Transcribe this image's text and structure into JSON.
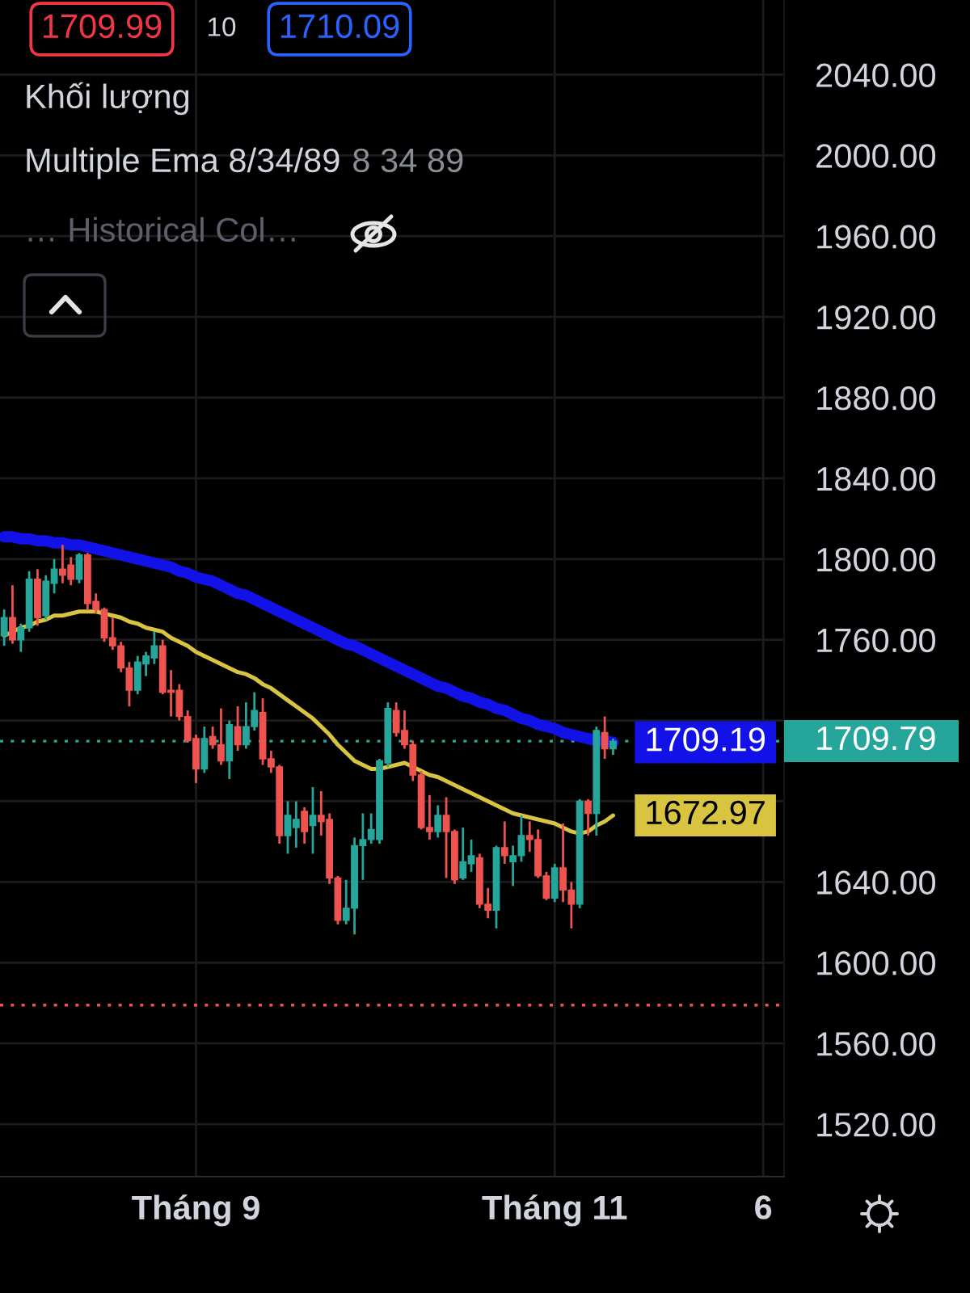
{
  "chart_data": {
    "type": "candlestick",
    "categories": [
      null,
      null,
      null,
      null,
      null,
      null,
      null,
      null,
      null,
      null,
      null,
      null,
      null,
      null,
      null,
      null,
      null,
      null,
      null,
      null,
      null,
      null,
      null,
      "Tháng 9",
      null,
      null,
      null,
      null,
      null,
      null,
      null,
      null,
      null,
      null,
      null,
      null,
      null,
      null,
      null,
      null,
      null,
      null,
      null,
      null,
      null,
      null,
      null,
      null,
      null,
      null,
      null,
      null,
      null,
      null,
      null,
      null,
      null,
      null,
      null,
      null,
      null,
      null,
      null,
      null,
      null,
      null,
      "Tháng 11",
      null,
      null,
      null,
      null,
      null,
      null,
      null,
      null,
      null,
      null,
      null,
      null,
      null,
      null,
      null,
      null,
      null,
      null,
      null,
      null,
      null,
      null,
      null,
      null,
      "6",
      null,
      null
    ],
    "ohlc": [
      [
        1762,
        1775,
        1757,
        1771
      ],
      [
        1771,
        1787,
        1758,
        1760
      ],
      [
        1760,
        1768,
        1754,
        1766
      ],
      [
        1766,
        1794,
        1764,
        1790
      ],
      [
        1790,
        1795,
        1767,
        1771
      ],
      [
        1772,
        1792,
        1770,
        1789
      ],
      [
        1788,
        1800,
        1783,
        1795
      ],
      [
        1795,
        1807,
        1788,
        1792
      ],
      [
        1797,
        1801,
        1787,
        1790
      ],
      [
        1790,
        1803,
        1788,
        1802
      ],
      [
        1802,
        1803,
        1775,
        1778
      ],
      [
        1779,
        1783,
        1773,
        1775
      ],
      [
        1775,
        1776,
        1759,
        1761
      ],
      [
        1761,
        1771,
        1755,
        1757
      ],
      [
        1757,
        1759,
        1744,
        1746
      ],
      [
        1746,
        1749,
        1727,
        1735
      ],
      [
        1735,
        1752,
        1733,
        1749
      ],
      [
        1748,
        1754,
        1742,
        1752
      ],
      [
        1751,
        1764,
        1748,
        1757
      ],
      [
        1757,
        1760,
        1733,
        1734
      ],
      [
        1735,
        1745,
        1722,
        1734
      ],
      [
        1735,
        1738,
        1720,
        1722
      ],
      [
        1722,
        1725,
        1709,
        1710
      ],
      [
        1711,
        1713,
        1689,
        1696
      ],
      [
        1696,
        1717,
        1694,
        1711
      ],
      [
        1712,
        1717,
        1706,
        1708
      ],
      [
        1708,
        1726,
        1698,
        1700
      ],
      [
        1700,
        1720,
        1691,
        1718
      ],
      [
        1717,
        1727,
        1705,
        1708
      ],
      [
        1708,
        1729,
        1706,
        1717
      ],
      [
        1717,
        1734,
        1715,
        1725
      ],
      [
        1724,
        1731,
        1698,
        1701
      ],
      [
        1701,
        1705,
        1694,
        1697
      ],
      [
        1697,
        1698,
        1659,
        1663
      ],
      [
        1663,
        1680,
        1654,
        1673
      ],
      [
        1667,
        1680,
        1657,
        1671
      ],
      [
        1675,
        1677,
        1659,
        1665
      ],
      [
        1668,
        1687,
        1654,
        1673
      ],
      [
        1673,
        1685,
        1663,
        1670
      ],
      [
        1671,
        1674,
        1639,
        1642
      ],
      [
        1642,
        1643,
        1619,
        1621
      ],
      [
        1621,
        1641,
        1619,
        1627
      ],
      [
        1627,
        1662,
        1614,
        1658
      ],
      [
        1658,
        1674,
        1641,
        1661
      ],
      [
        1661,
        1674,
        1659,
        1666
      ],
      [
        1661,
        1701,
        1659,
        1700
      ],
      [
        1699,
        1729,
        1697,
        1726
      ],
      [
        1725,
        1729,
        1712,
        1714
      ],
      [
        1715,
        1725,
        1706,
        1708
      ],
      [
        1708,
        1710,
        1690,
        1693
      ],
      [
        1693,
        1695,
        1666,
        1667
      ],
      [
        1667,
        1683,
        1661,
        1665
      ],
      [
        1665,
        1678,
        1662,
        1673
      ],
      [
        1673,
        1682,
        1642,
        1665
      ],
      [
        1665,
        1666,
        1639,
        1641
      ],
      [
        1642,
        1667,
        1641,
        1650
      ],
      [
        1649,
        1661,
        1645,
        1653
      ],
      [
        1652,
        1654,
        1627,
        1629
      ],
      [
        1629,
        1637,
        1622,
        1626
      ],
      [
        1626,
        1658,
        1617,
        1657
      ],
      [
        1657,
        1670,
        1649,
        1653
      ],
      [
        1650,
        1658,
        1638,
        1653
      ],
      [
        1653,
        1673,
        1650,
        1663
      ],
      [
        1663,
        1670,
        1655,
        1661
      ],
      [
        1661,
        1666,
        1642,
        1643
      ],
      [
        1643,
        1645,
        1631,
        1632
      ],
      [
        1632,
        1649,
        1630,
        1647
      ],
      [
        1647,
        1669,
        1630,
        1636
      ],
      [
        1636,
        1640,
        1617,
        1629
      ],
      [
        1629,
        1681,
        1627,
        1680
      ],
      [
        1680,
        1681,
        1663,
        1674
      ],
      [
        1674,
        1717,
        1663,
        1715
      ],
      [
        1714,
        1722,
        1701,
        1706
      ],
      [
        1706,
        1711,
        1703,
        1709.79
      ],
      null,
      null,
      null,
      null,
      null,
      null,
      null,
      null,
      null,
      null,
      null,
      null,
      null,
      null,
      null,
      null,
      null,
      null,
      null,
      null
    ],
    "colors": [
      "#26a69a",
      "#ef5350",
      "#26a69a",
      "#26a69a",
      "#ef5350",
      "#26a69a",
      "#26a69a",
      "#ef5350",
      "#ef5350",
      "#26a69a",
      "#ef5350",
      "#ef5350",
      "#ef5350",
      "#ef5350",
      "#ef5350",
      "#ef5350",
      "#26a69a",
      "#26a69a",
      "#26a69a",
      "#ef5350",
      "#ef5350",
      "#ef5350",
      "#ef5350",
      "#ef5350",
      "#26a69a",
      "#ef5350",
      "#ef5350",
      "#26a69a",
      "#ef5350",
      "#26a69a",
      "#26a69a",
      "#ef5350",
      "#ef5350",
      "#ef5350",
      "#26a69a",
      "#26a69a",
      "#ef5350",
      "#26a69a",
      "#ef5350",
      "#ef5350",
      "#ef5350",
      "#26a69a",
      "#26a69a",
      "#26a69a",
      "#26a69a",
      "#26a69a",
      "#26a69a",
      "#ef5350",
      "#ef5350",
      "#ef5350",
      "#ef5350",
      "#ef5350",
      "#26a69a",
      "#ef5350",
      "#ef5350",
      "#26a69a",
      "#26a69a",
      "#ef5350",
      "#ef5350",
      "#26a69a",
      "#ef5350",
      "#26a69a",
      "#26a69a",
      "#ef5350",
      "#ef5350",
      "#ef5350",
      "#26a69a",
      "#ef5350",
      "#ef5350",
      "#26a69a",
      "#ef5350",
      "#26a69a",
      "#ef5350",
      "#26a69a",
      null,
      null,
      null,
      null,
      null,
      null,
      null,
      null,
      null,
      null,
      null,
      null,
      null,
      null,
      null,
      null,
      null,
      null,
      null,
      null
    ],
    "series": [
      {
        "type": "line",
        "color": "#1212e8",
        "values": [
          1811,
          1811,
          1810,
          1810,
          1809,
          1809,
          1808,
          1808,
          1807,
          1807,
          1806,
          1805,
          1804,
          1803,
          1802,
          1801,
          1800,
          1799,
          1798,
          1797,
          1796,
          1794,
          1793,
          1791,
          1790,
          1789,
          1787,
          1785,
          1783,
          1782,
          1780,
          1778,
          1776,
          1774,
          1772,
          1770,
          1768,
          1766,
          1764,
          1762,
          1760,
          1758,
          1757,
          1755,
          1753,
          1751,
          1749,
          1747,
          1745,
          1743,
          1741,
          1739,
          1737,
          1736,
          1734,
          1732,
          1731,
          1729,
          1728,
          1726,
          1725,
          1723,
          1721,
          1720,
          1718,
          1717,
          1716,
          1714,
          1713,
          1712,
          1711,
          1710,
          1710,
          1709.19,
          null,
          null,
          null,
          null,
          null,
          null,
          null,
          null,
          null,
          null,
          null,
          null,
          null,
          null,
          null,
          null,
          null,
          null,
          null,
          null
        ],
        "value_labels": [
          null,
          null,
          null,
          null,
          null,
          null,
          null,
          null,
          null,
          null,
          null,
          null,
          null,
          null,
          null,
          null,
          null,
          null,
          null,
          null,
          null,
          null,
          null,
          null,
          null,
          null,
          null,
          null,
          null,
          null,
          null,
          null,
          null,
          null,
          null,
          null,
          null,
          null,
          null,
          null,
          null,
          null,
          null,
          null,
          null,
          null,
          null,
          null,
          null,
          null,
          null,
          null,
          null,
          null,
          null,
          null,
          null,
          null,
          null,
          null,
          null,
          null,
          null,
          null,
          null,
          null,
          null,
          null,
          null,
          null,
          null,
          null,
          null,
          "1709.19",
          null,
          null,
          null,
          null,
          null,
          null,
          null,
          null,
          null,
          null,
          null,
          null,
          null,
          null,
          null,
          null,
          null,
          null,
          null,
          null
        ]
      },
      {
        "type": "line",
        "color": "#d8c440",
        "values": [
          1762,
          1764,
          1766,
          1767,
          1769,
          1770,
          1772,
          1772,
          1773,
          1774,
          1774,
          1774,
          1773,
          1772,
          1771,
          1769,
          1768,
          1766,
          1765,
          1764,
          1761,
          1759,
          1757,
          1754,
          1752,
          1750,
          1748,
          1746,
          1744,
          1743,
          1741,
          1738,
          1736,
          1733,
          1730,
          1727,
          1724,
          1721,
          1717,
          1713,
          1708,
          1704,
          1700,
          1698,
          1696,
          1696,
          1697,
          1698,
          1699,
          1697,
          1695,
          1693,
          1692,
          1690,
          1688,
          1686,
          1684,
          1682,
          1680,
          1678,
          1676,
          1674,
          1673,
          1672,
          1671,
          1670,
          1669,
          1667,
          1665,
          1664,
          1665,
          1668,
          1670,
          1672.97,
          null,
          null,
          null,
          null,
          null,
          null,
          null,
          null,
          null,
          null,
          null,
          null,
          null,
          null,
          null,
          null,
          null,
          null,
          null,
          null
        ],
        "value_labels": [
          null,
          null,
          null,
          null,
          null,
          null,
          null,
          null,
          null,
          null,
          null,
          null,
          null,
          null,
          null,
          null,
          null,
          null,
          null,
          null,
          null,
          null,
          null,
          null,
          null,
          null,
          null,
          null,
          null,
          null,
          null,
          null,
          null,
          null,
          null,
          null,
          null,
          null,
          null,
          null,
          null,
          null,
          null,
          null,
          null,
          null,
          null,
          null,
          null,
          null,
          null,
          null,
          null,
          null,
          null,
          null,
          null,
          null,
          null,
          null,
          null,
          null,
          null,
          null,
          null,
          null,
          null,
          null,
          null,
          null,
          null,
          null,
          null,
          "1672.97",
          null,
          null,
          null,
          null,
          null,
          null,
          null,
          null,
          null,
          null,
          null,
          null,
          null,
          null,
          null,
          null,
          null,
          null,
          null,
          null
        ]
      }
    ],
    "ylim": [
      1494,
      2077
    ],
    "yticks": [
      {
        "value": 1520,
        "label": "1520.00"
      },
      {
        "value": 1560,
        "label": "1560.00"
      },
      {
        "value": 1600,
        "label": "1600.00"
      },
      {
        "value": 1640,
        "label": "1640.00"
      },
      {
        "value": 1680,
        "label": null
      },
      {
        "value": 1720,
        "label": null
      },
      {
        "value": 1760,
        "label": "1760.00"
      },
      {
        "value": 1800,
        "label": "1800.00"
      },
      {
        "value": 1840,
        "label": "1840.00"
      },
      {
        "value": 1880,
        "label": "1880.00"
      },
      {
        "value": 1920,
        "label": "1920.00"
      },
      {
        "value": 1960,
        "label": "1960.00"
      },
      {
        "value": 2000,
        "label": "2000.00"
      },
      {
        "value": 2040,
        "label": "2040.00"
      }
    ],
    "grid": true,
    "ref_lines": [
      {
        "axis": "y",
        "value": 1709.79,
        "label": "1709.79",
        "color": "#26a69a",
        "line_style": "dotted"
      },
      {
        "axis": "y",
        "value": 1579,
        "color": "#ef5350",
        "line_style": "dotted"
      }
    ],
    "annotations": [
      "1709.99",
      "10",
      "1710.09",
      "Khối lượng",
      "Multiple Ema 8/34/89",
      "8 34 89",
      "… Historical Col…"
    ]
  }
}
